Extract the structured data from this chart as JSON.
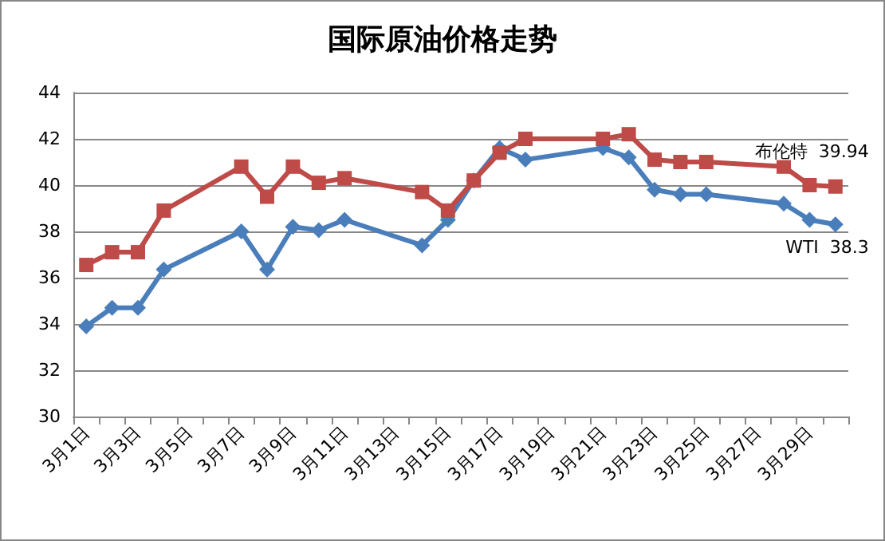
{
  "chart_data": {
    "type": "line",
    "title": "国际原油价格走势",
    "categories": [
      "3月1日",
      null,
      "3月3日",
      null,
      "3月5日",
      null,
      "3月7日",
      null,
      "3月9日",
      null,
      "3月11日",
      null,
      "3月13日",
      null,
      "3月15日",
      null,
      "3月17日",
      null,
      "3月19日",
      null,
      "3月21日",
      null,
      "3月23日",
      null,
      "3月25日",
      null,
      "3月27日",
      null,
      "3月29日",
      null
    ],
    "series": [
      {
        "name": "WTI",
        "color": "#4a7ebb",
        "marker": "diamond",
        "values": [
          33.9,
          34.7,
          34.7,
          36.35,
          null,
          null,
          38.0,
          36.35,
          38.2,
          38.05,
          38.5,
          null,
          null,
          37.4,
          38.5,
          40.2,
          41.6,
          41.1,
          null,
          null,
          41.6,
          41.2,
          39.8,
          39.6,
          39.6,
          null,
          null,
          39.2,
          38.5,
          38.3
        ],
        "value_labels": [
          null,
          null,
          null,
          null,
          null,
          null,
          null,
          null,
          null,
          null,
          null,
          null,
          null,
          null,
          null,
          null,
          null,
          null,
          null,
          null,
          null,
          null,
          null,
          null,
          null,
          null,
          null,
          null,
          null,
          "38.3"
        ]
      },
      {
        "name": "布伦特",
        "color": "#be4b48",
        "marker": "square",
        "values": [
          36.55,
          37.1,
          37.1,
          38.9,
          null,
          null,
          40.8,
          39.5,
          40.8,
          40.1,
          40.3,
          null,
          null,
          39.7,
          38.9,
          40.2,
          41.4,
          42.0,
          null,
          null,
          42.0,
          42.2,
          41.1,
          41.0,
          41.0,
          null,
          null,
          40.8,
          40.0,
          39.94
        ],
        "value_labels": [
          null,
          null,
          null,
          null,
          null,
          null,
          null,
          null,
          null,
          null,
          null,
          null,
          null,
          null,
          null,
          null,
          null,
          null,
          null,
          null,
          null,
          null,
          null,
          null,
          null,
          null,
          null,
          null,
          null,
          "39.94"
        ]
      }
    ],
    "ylim": [
      30,
      44
    ],
    "yticks": [
      30,
      32,
      34,
      36,
      38,
      40,
      42,
      44
    ],
    "grid": "y",
    "legend": false,
    "line_style": "solid"
  }
}
